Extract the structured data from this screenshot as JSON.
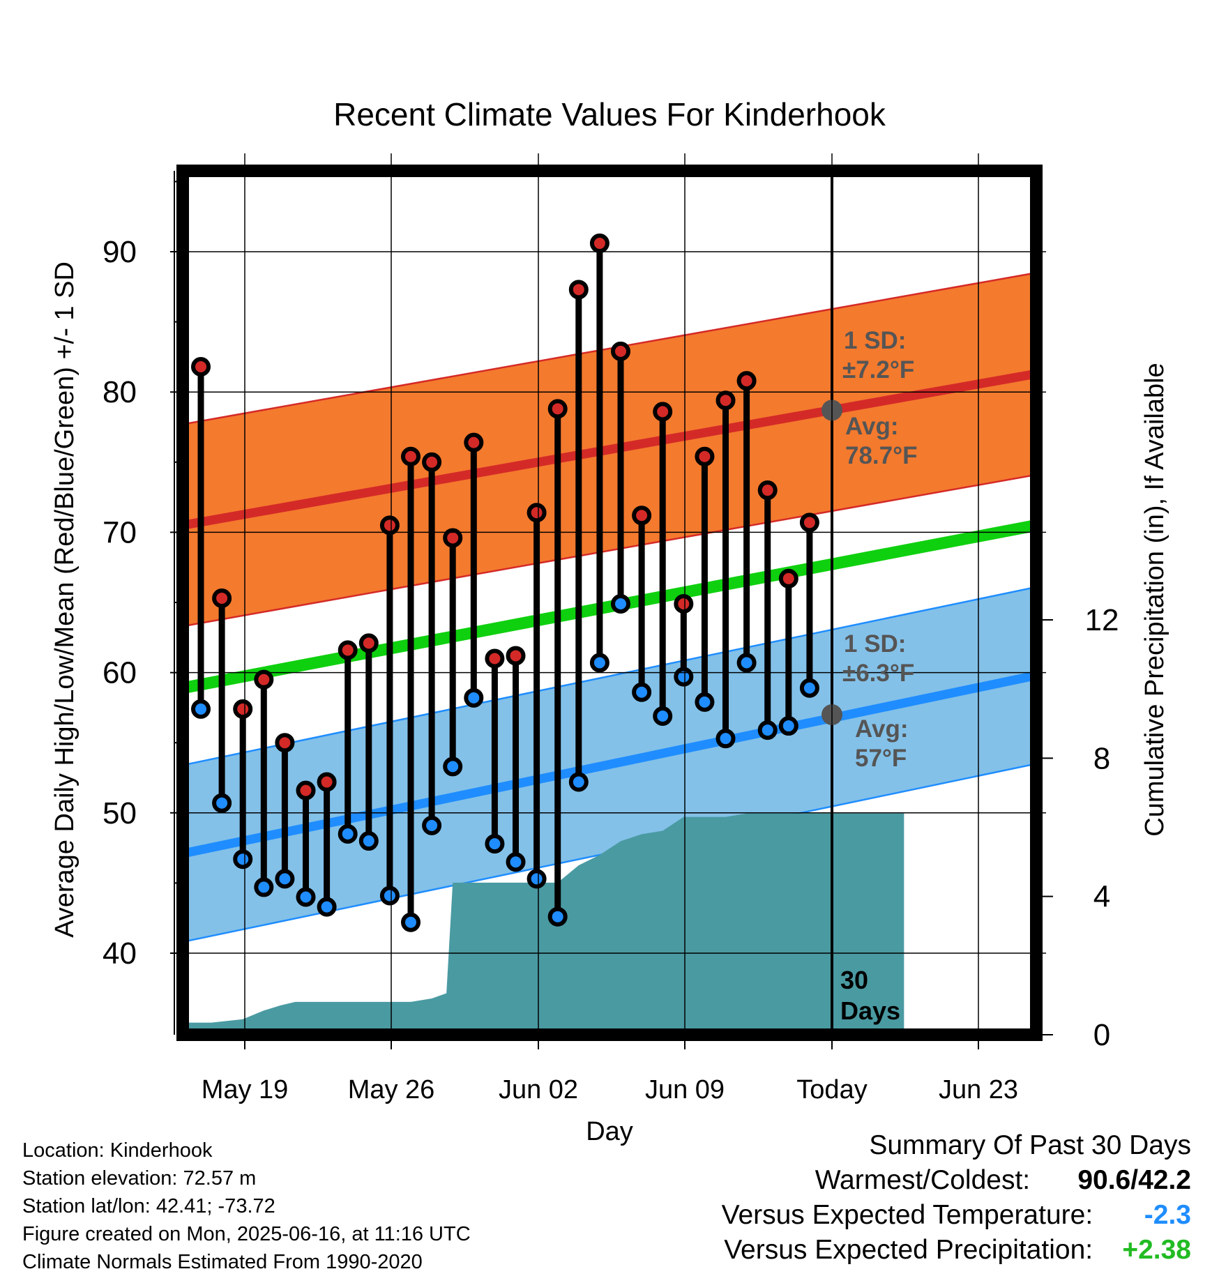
{
  "chart_data": {
    "type": "line",
    "title": "Recent Climate Values For Kinderhook",
    "xlabel": "Day",
    "ylabel": "Average Daily High/Low/Mean (Red/Blue/Green) +/- 1 SD",
    "y2label": "Cumulative Precipitation (in), If Available",
    "ylim": [
      34.5,
      95.5
    ],
    "y2lim": [
      0,
      18
    ],
    "x_tick_labels": [
      "May 19",
      "May 26",
      "Jun 02",
      "Jun 09",
      "Today",
      "Jun 23"
    ],
    "y_ticks": [
      40,
      50,
      60,
      70,
      80,
      90
    ],
    "y2_ticks": [
      0,
      4,
      8,
      12
    ],
    "grid": true,
    "days": [
      "May 17",
      "May 18",
      "May 19",
      "May 20",
      "May 21",
      "May 22",
      "May 23",
      "May 24",
      "May 25",
      "May 26",
      "May 27",
      "May 28",
      "May 29",
      "May 30",
      "May 31",
      "Jun 01",
      "Jun 02",
      "Jun 03",
      "Jun 04",
      "Jun 05",
      "Jun 06",
      "Jun 07",
      "Jun 08",
      "Jun 09",
      "Jun 10",
      "Jun 11",
      "Jun 12",
      "Jun 13",
      "Jun 14",
      "Jun 15"
    ],
    "daily_high": [
      81.8,
      65.3,
      57.4,
      59.5,
      55.0,
      51.6,
      52.2,
      61.6,
      62.1,
      70.5,
      75.4,
      75.0,
      69.6,
      76.4,
      61.0,
      61.2,
      71.4,
      78.8,
      87.3,
      90.6,
      82.9,
      71.2,
      78.6,
      64.9,
      75.4,
      79.4,
      80.8,
      73.0,
      66.7,
      70.7
    ],
    "daily_low": [
      57.4,
      50.7,
      46.7,
      44.7,
      45.3,
      44.0,
      43.3,
      48.5,
      48.0,
      44.1,
      42.2,
      49.1,
      53.3,
      58.2,
      47.8,
      46.5,
      45.3,
      42.6,
      52.2,
      60.7,
      64.9,
      58.6,
      56.9,
      59.7,
      57.9,
      55.3,
      60.7,
      55.9,
      56.2,
      58.9
    ],
    "normal_high": {
      "start": 70.5,
      "end": 81.3,
      "sd": "±7.2°F",
      "today_avg": "78.7°F"
    },
    "normal_low": {
      "start": 47.1,
      "end": 59.8,
      "sd": "±6.3°F",
      "today_avg": "57°F"
    },
    "normal_mean": {
      "start": 58.9,
      "end": 70.5
    },
    "cumulative_precip": [
      [
        -1.0,
        0.35
      ],
      [
        0.5,
        0.35
      ],
      [
        2.0,
        0.45
      ],
      [
        3.0,
        0.7
      ],
      [
        3.8,
        0.85
      ],
      [
        4.5,
        0.95
      ],
      [
        6.0,
        0.95
      ],
      [
        10.0,
        0.95
      ],
      [
        11.0,
        1.05
      ],
      [
        11.7,
        1.2
      ],
      [
        12.0,
        4.4
      ],
      [
        16.0,
        4.4
      ],
      [
        17.0,
        4.4
      ],
      [
        18.0,
        4.9
      ],
      [
        19.0,
        5.2
      ],
      [
        20.0,
        5.6
      ],
      [
        21.0,
        5.8
      ],
      [
        22.0,
        5.9
      ],
      [
        23.0,
        6.3
      ],
      [
        24.0,
        6.3
      ],
      [
        25.0,
        6.3
      ],
      [
        26.0,
        6.4
      ],
      [
        27.0,
        6.4
      ],
      [
        28.0,
        6.4
      ],
      [
        29.0,
        6.4
      ],
      [
        33.5,
        6.4
      ]
    ],
    "sd_labels": {
      "high_sd_title": "1 SD:",
      "high_avg_title": "Avg:",
      "low_sd_title": "1 SD:",
      "low_avg_title": "Avg:"
    },
    "window_label_line1": "30",
    "window_label_line2": "Days"
  },
  "colors": {
    "high_band": "#f47a2e",
    "high_line": "#d42a27",
    "low_band": "#83c1e9",
    "low_line": "#1f8dff",
    "mean_line": "#0fd00f",
    "precip": "#4a9aa2",
    "high_dot": "#d42a27",
    "low_dot": "#1f8dff",
    "label_gray": "#555555",
    "negative": "#1f8dff",
    "positive": "#22bb22"
  },
  "footer": {
    "location": "Location: Kinderhook",
    "elevation": "Station elevation: 72.57 m",
    "latlon": "Station lat/lon: 42.41; -73.72",
    "created": "Figure created on Mon, 2025-06-16, at 11:16 UTC",
    "normals": "Climate Normals Estimated From 1990-2020"
  },
  "summary": {
    "title": "Summary Of Past 30 Days",
    "warmest_label": "Warmest/Coldest:",
    "warmest_value": "90.6/42.2",
    "temp_label": "Versus Expected Temperature:",
    "temp_value": "-2.3",
    "precip_label": "Versus Expected Precipitation:",
    "precip_value": "+2.38"
  }
}
